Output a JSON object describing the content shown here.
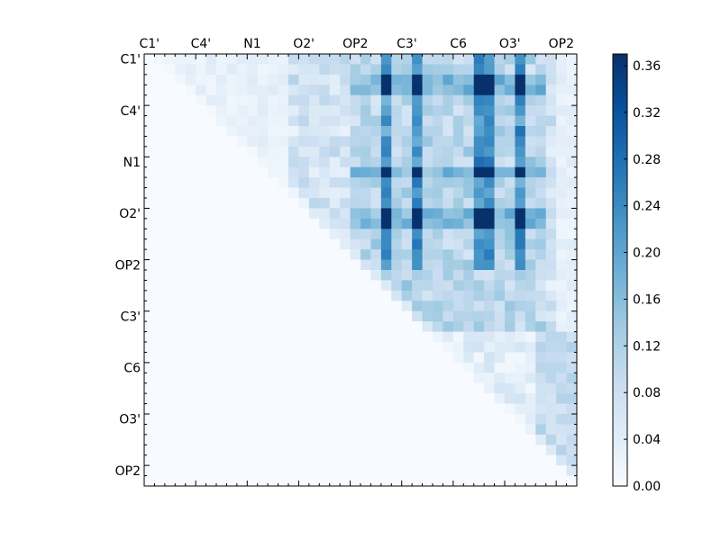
{
  "chart_data": {
    "type": "heatmap",
    "title": "",
    "xlabel": "",
    "ylabel": "",
    "colormap": "Blues",
    "colormap_stops": [
      "#f7fbff",
      "#deebf7",
      "#c6dbef",
      "#9ecae1",
      "#6baed6",
      "#4292c6",
      "#2171b5",
      "#08519c",
      "#08306b"
    ],
    "value_range": [
      0.0,
      0.37
    ],
    "grid_size": [
      42,
      42
    ],
    "layout": "upper-triangle",
    "x_tick_labels": [
      "C1'",
      "C4'",
      "N1",
      "O2'",
      "OP2",
      "C3'",
      "C6",
      "O3'",
      "OP2"
    ],
    "y_tick_labels": [
      "C1'",
      "C4'",
      "N1",
      "O2'",
      "OP2",
      "C3'",
      "C6",
      "O3'",
      "OP2"
    ],
    "label_every_n_cells": 5,
    "x_axis_position": "top",
    "colorbar": {
      "position": "right",
      "tick_labels": [
        "0.36",
        "0.32",
        "0.28",
        "0.24",
        "0.20",
        "0.16",
        "0.12",
        "0.08",
        "0.04",
        "0.00"
      ]
    },
    "dominant_columns": [
      23,
      26,
      32,
      33,
      36
    ],
    "dominant_rows": [
      2,
      3,
      11,
      15,
      16
    ],
    "max_cells": [
      [
        11,
        32
      ],
      [
        11,
        33
      ],
      [
        15,
        32
      ],
      [
        15,
        33
      ],
      [
        2,
        32
      ]
    ]
  }
}
